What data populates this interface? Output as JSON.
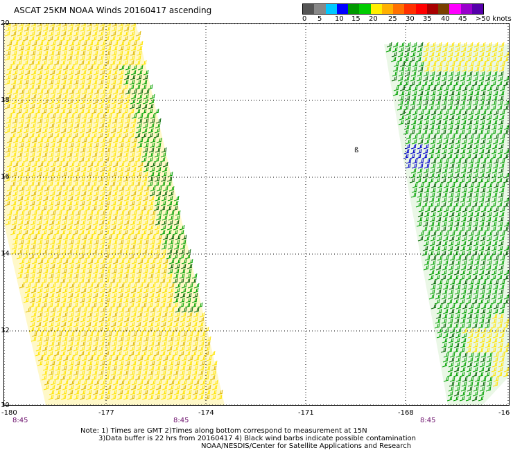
{
  "title": "ASCAT 25KM NOAA Winds 20160417 ascending",
  "colorbar": {
    "labels": [
      "0",
      "5",
      "10",
      "15",
      "20",
      "25",
      "30",
      "35",
      "40",
      "45",
      ">50 knots"
    ],
    "colors": [
      "#555555",
      "#888888",
      "#00c8ff",
      "#0000ff",
      "#009900",
      "#00cc00",
      "#ffee00",
      "#ffb000",
      "#ff7000",
      "#ff3000",
      "#ff0000",
      "#a80000",
      "#7a4000",
      "#ff00ff",
      "#9900cc",
      "#5500aa"
    ]
  },
  "axes": {
    "lon_labels": [
      "-180",
      "-177",
      "-174",
      "-171",
      "-168",
      "-16"
    ],
    "lat_labels": [
      "20",
      "18",
      "16",
      "14",
      "12",
      "10"
    ]
  },
  "times": [
    "8:45",
    "8:45",
    "8:45"
  ],
  "notes": {
    "line1": "Note: 1) Times are GMT 2)Times along bottom correspond to measurement at 15N",
    "line2": "3)Data buffer is 22 hrs from 20160417 4) Black wind barbs indicate possible contamination",
    "line3": "NOAA/NESDIS/Center for Satellite Applications and Research"
  },
  "marker": "ß",
  "colors": {
    "yellow_barbs": "#ffe400",
    "yellow_dark": "#e0b800",
    "green_barbs": "#00a000",
    "dark_green": "#006400",
    "blue_barbs": "#0000cc"
  }
}
